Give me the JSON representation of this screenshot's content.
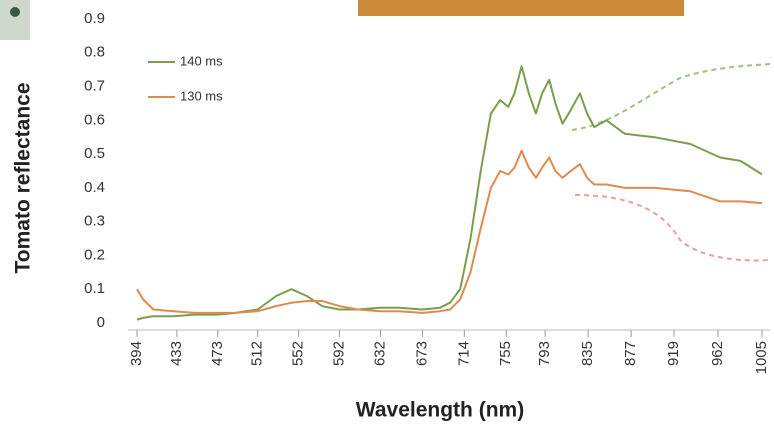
{
  "chart_data": {
    "type": "line",
    "x_label": "Wavelength (nm)",
    "y_label": "Tomato reflectance",
    "x": [
      394,
      400,
      410,
      430,
      450,
      473,
      490,
      512,
      530,
      545,
      560,
      575,
      592,
      610,
      632,
      650,
      673,
      690,
      700,
      710,
      720,
      730,
      740,
      749,
      757,
      763,
      770,
      777,
      784,
      790,
      797,
      803,
      810,
      818,
      827,
      834,
      841,
      853,
      871,
      900,
      935,
      964,
      984,
      1005
    ],
    "series": [
      {
        "name": "140 ms",
        "color": "#7a9e4e",
        "values": [
          0.01,
          0.015,
          0.02,
          0.02,
          0.025,
          0.025,
          0.03,
          0.04,
          0.08,
          0.1,
          0.08,
          0.05,
          0.04,
          0.04,
          0.045,
          0.045,
          0.04,
          0.045,
          0.06,
          0.1,
          0.25,
          0.45,
          0.62,
          0.66,
          0.64,
          0.68,
          0.76,
          0.68,
          0.62,
          0.68,
          0.72,
          0.65,
          0.59,
          0.63,
          0.68,
          0.62,
          0.58,
          0.6,
          0.56,
          0.55,
          0.53,
          0.49,
          0.48,
          0.44
        ]
      },
      {
        "name": "130 ms",
        "color": "#e08a4e",
        "values": [
          0.1,
          0.07,
          0.04,
          0.035,
          0.03,
          0.03,
          0.03,
          0.035,
          0.05,
          0.06,
          0.065,
          0.065,
          0.05,
          0.04,
          0.035,
          0.035,
          0.03,
          0.035,
          0.04,
          0.07,
          0.15,
          0.28,
          0.4,
          0.45,
          0.44,
          0.46,
          0.51,
          0.46,
          0.43,
          0.46,
          0.49,
          0.45,
          0.43,
          0.45,
          0.47,
          0.43,
          0.41,
          0.41,
          0.4,
          0.4,
          0.39,
          0.36,
          0.36,
          0.355
        ]
      }
    ],
    "xlim": [
      394,
      1005
    ],
    "xticks": [
      394,
      433,
      473,
      512,
      552,
      592,
      632,
      673,
      714,
      755,
      793,
      835,
      877,
      919,
      962,
      1005
    ],
    "ylim": [
      0,
      0.9
    ],
    "yticks": [
      0,
      0.1,
      0.2,
      0.3,
      0.4,
      0.5,
      0.6,
      0.7,
      0.8,
      0.9
    ],
    "legend": "upper-left"
  }
}
